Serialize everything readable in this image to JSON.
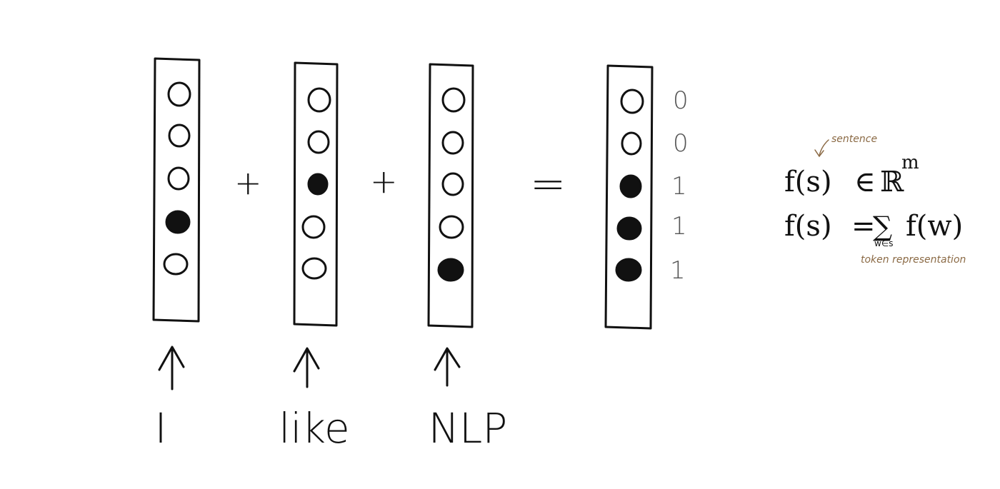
{
  "vectors": [
    {
      "id": "I",
      "label": "I",
      "bits": [
        0,
        0,
        0,
        1,
        0
      ]
    },
    {
      "id": "like",
      "label": "like",
      "bits": [
        0,
        0,
        1,
        0,
        0
      ]
    },
    {
      "id": "NLP",
      "label": "NLP",
      "bits": [
        0,
        0,
        0,
        0,
        1
      ]
    },
    {
      "id": "sentence",
      "label": "",
      "bits": [
        0,
        0,
        1,
        1,
        1
      ]
    }
  ],
  "operators": {
    "plus_1": "+",
    "plus_2": "+",
    "equals": "="
  },
  "result_values": [
    "0",
    "0",
    "1",
    "1",
    "1"
  ],
  "formula": {
    "line1_lhs": "f(s)",
    "line1_in": "∈",
    "line1_space": "ℝ",
    "line1_exp": "m",
    "line2_lhs": "f(s)",
    "line2_eq": "=",
    "line2_sum": "∑",
    "line2_sub": "w∈s",
    "line2_term": "f(w)"
  },
  "annotations": {
    "sentence_note": "sentence",
    "token_note": "token representation"
  },
  "colors": {
    "ink": "#111111",
    "annotation": "#8b6a45",
    "values": "#555555"
  }
}
